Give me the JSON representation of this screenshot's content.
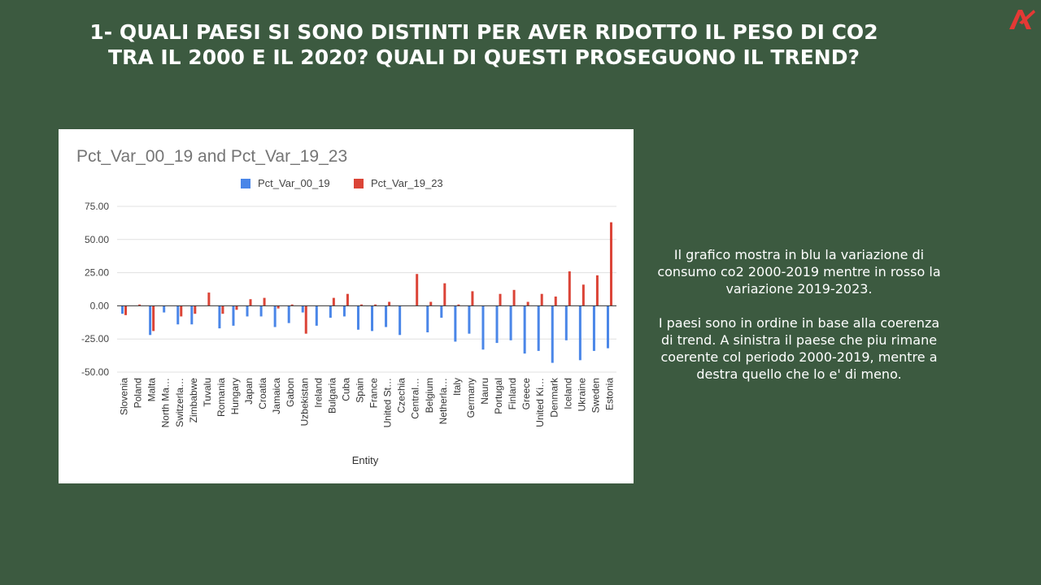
{
  "slide": {
    "title_line1": "1- QUALI PAESI SI SONO DISTINTI PER AVER RIDOTTO IL PESO DI CO2",
    "title_line2": "TRA IL 2000 E IL 2020? QUALI DI QUESTI PROSEGUONO IL TREND?",
    "description_1": "Il grafico mostra in blu la variazione di consumo co2 2000-2019 mentre in rosso la variazione 2019-2023.",
    "description_2": "I paesi sono in ordine in base alla coerenza di trend. A sinistra il paese che piu rimane coerente col periodo 2000-2019, mentre a destra quello che lo e' di meno."
  },
  "colors": {
    "background": "#3c5a40",
    "series_blue": "#4a86e8",
    "series_red": "#db4437",
    "logo_red": "#e53935"
  },
  "logo": {
    "icon": "brand-logo-icon"
  },
  "chart_data": {
    "type": "bar",
    "title": "Pct_Var_00_19 and Pct_Var_19_23",
    "xlabel": "Entity",
    "ylabel": "",
    "ylim": [
      -50,
      75
    ],
    "yticks": [
      "75.00",
      "50.00",
      "25.00",
      "0.00",
      "-25.00",
      "-50.00"
    ],
    "ytick_values": [
      75,
      50,
      25,
      0,
      -25,
      -50
    ],
    "legend_position": "top",
    "grid": true,
    "categories": [
      "Slovenia",
      "Poland",
      "Malta",
      "North Ma…",
      "Switzerla…",
      "Zimbabwe",
      "Tuvalu",
      "Romania",
      "Hungary",
      "Japan",
      "Croatia",
      "Jamaica",
      "Gabon",
      "Uzbekistan",
      "Ireland",
      "Bulgaria",
      "Cuba",
      "Spain",
      "France",
      "United St…",
      "Czechia",
      "Central…",
      "Belgium",
      "Netherla…",
      "Italy",
      "Germany",
      "Nauru",
      "Portugal",
      "Finland",
      "Greece",
      "United Ki…",
      "Denmark",
      "Iceland",
      "Ukraine",
      "Sweden",
      "Estonia"
    ],
    "series": [
      {
        "name": "Pct_Var_00_19",
        "color": "#4a86e8",
        "values": [
          -6,
          0,
          -22,
          -5,
          -14,
          -14,
          0,
          -17,
          -15,
          -8,
          -8,
          -16,
          -13,
          -5,
          -15,
          -9,
          -8,
          -18,
          -19,
          -16,
          -22,
          0,
          -20,
          -9,
          -27,
          -21,
          -33,
          -28,
          -26,
          -36,
          -34,
          -43,
          -26,
          -41,
          -34,
          -32
        ]
      },
      {
        "name": "Pct_Var_19_23",
        "color": "#db4437",
        "values": [
          -7,
          1,
          -19,
          0,
          -8,
          -6,
          10,
          -6,
          -3,
          5,
          6,
          -2,
          1,
          -21,
          0,
          6,
          9,
          1,
          1,
          3,
          0,
          24,
          3,
          17,
          1,
          11,
          0,
          9,
          12,
          3,
          9,
          7,
          26,
          16,
          23,
          63
        ]
      }
    ]
  }
}
